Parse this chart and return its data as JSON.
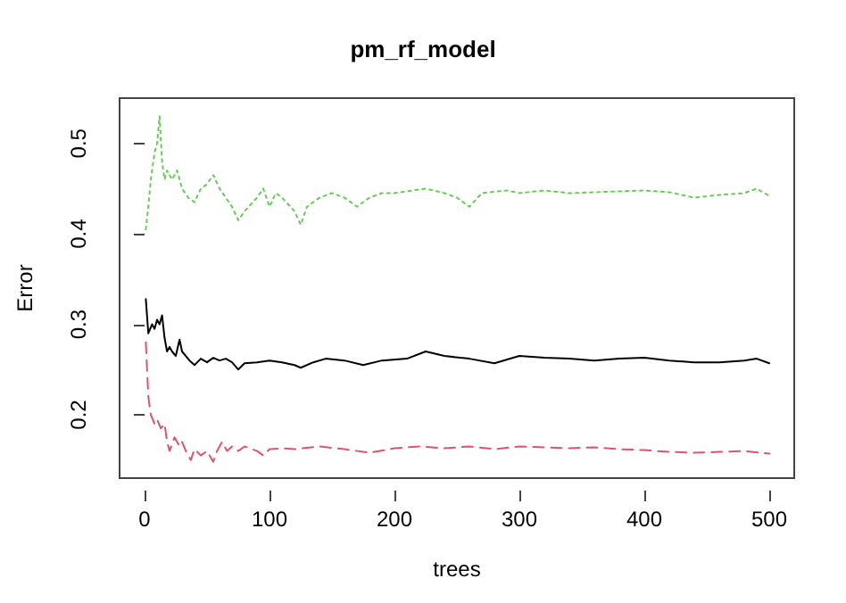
{
  "chart_data": {
    "type": "line",
    "title": "pm_rf_model",
    "xlabel": "trees",
    "ylabel": "Error",
    "xlim": [
      -20,
      520
    ],
    "xticks": [
      0,
      100,
      200,
      300,
      400,
      500
    ],
    "ylim": [
      0.13,
      0.55
    ],
    "yticks": [
      0.2,
      0.3,
      0.4,
      0.5
    ],
    "grid": false,
    "marker": "none",
    "series": [
      {
        "color": "#000000",
        "line_style": "solid",
        "x": [
          1,
          3,
          6,
          8,
          10,
          12,
          14,
          16,
          18,
          20,
          22,
          25,
          28,
          30,
          33,
          36,
          40,
          45,
          50,
          55,
          60,
          65,
          70,
          75,
          80,
          90,
          100,
          110,
          120,
          125,
          135,
          145,
          160,
          175,
          190,
          210,
          225,
          240,
          260,
          280,
          300,
          320,
          340,
          360,
          380,
          400,
          420,
          440,
          460,
          480,
          490,
          500
        ],
        "values": [
          0.328,
          0.29,
          0.3,
          0.295,
          0.305,
          0.3,
          0.31,
          0.285,
          0.27,
          0.275,
          0.27,
          0.265,
          0.283,
          0.27,
          0.265,
          0.26,
          0.255,
          0.262,
          0.258,
          0.263,
          0.26,
          0.262,
          0.258,
          0.25,
          0.257,
          0.258,
          0.26,
          0.258,
          0.255,
          0.252,
          0.258,
          0.262,
          0.26,
          0.255,
          0.26,
          0.262,
          0.27,
          0.265,
          0.262,
          0.257,
          0.265,
          0.263,
          0.262,
          0.26,
          0.262,
          0.263,
          0.26,
          0.258,
          0.258,
          0.26,
          0.262,
          0.257
        ]
      },
      {
        "color": "#df536b",
        "line_style": "dashed",
        "x": [
          1,
          3,
          5,
          8,
          10,
          13,
          16,
          18,
          20,
          24,
          28,
          30,
          33,
          37,
          40,
          45,
          50,
          55,
          58,
          62,
          66,
          70,
          75,
          80,
          90,
          95,
          100,
          110,
          120,
          140,
          160,
          180,
          200,
          220,
          240,
          260,
          280,
          300,
          320,
          340,
          360,
          380,
          400,
          420,
          440,
          460,
          480,
          500
        ],
        "values": [
          0.28,
          0.22,
          0.2,
          0.19,
          0.195,
          0.185,
          0.19,
          0.17,
          0.16,
          0.175,
          0.165,
          0.17,
          0.16,
          0.15,
          0.162,
          0.155,
          0.16,
          0.148,
          0.16,
          0.17,
          0.16,
          0.165,
          0.16,
          0.165,
          0.16,
          0.155,
          0.162,
          0.163,
          0.162,
          0.165,
          0.162,
          0.158,
          0.163,
          0.165,
          0.163,
          0.165,
          0.162,
          0.165,
          0.164,
          0.163,
          0.164,
          0.162,
          0.161,
          0.159,
          0.158,
          0.159,
          0.16,
          0.157
        ]
      },
      {
        "color": "#61d04f",
        "line_style": "dotted",
        "x": [
          1,
          3,
          5,
          8,
          10,
          12,
          14,
          16,
          18,
          22,
          26,
          30,
          35,
          40,
          45,
          50,
          55,
          60,
          65,
          70,
          75,
          80,
          90,
          95,
          100,
          105,
          110,
          120,
          125,
          130,
          140,
          150,
          160,
          170,
          180,
          190,
          200,
          210,
          225,
          240,
          250,
          260,
          270,
          290,
          300,
          320,
          340,
          360,
          380,
          400,
          420,
          440,
          460,
          480,
          490,
          500
        ],
        "values": [
          0.405,
          0.43,
          0.46,
          0.49,
          0.5,
          0.53,
          0.48,
          0.46,
          0.47,
          0.46,
          0.47,
          0.45,
          0.44,
          0.435,
          0.45,
          0.455,
          0.465,
          0.45,
          0.44,
          0.43,
          0.415,
          0.425,
          0.44,
          0.45,
          0.43,
          0.445,
          0.44,
          0.425,
          0.41,
          0.43,
          0.44,
          0.445,
          0.44,
          0.43,
          0.44,
          0.445,
          0.445,
          0.447,
          0.45,
          0.445,
          0.44,
          0.43,
          0.445,
          0.448,
          0.445,
          0.448,
          0.445,
          0.446,
          0.447,
          0.448,
          0.446,
          0.44,
          0.443,
          0.445,
          0.45,
          0.442
        ]
      }
    ]
  }
}
